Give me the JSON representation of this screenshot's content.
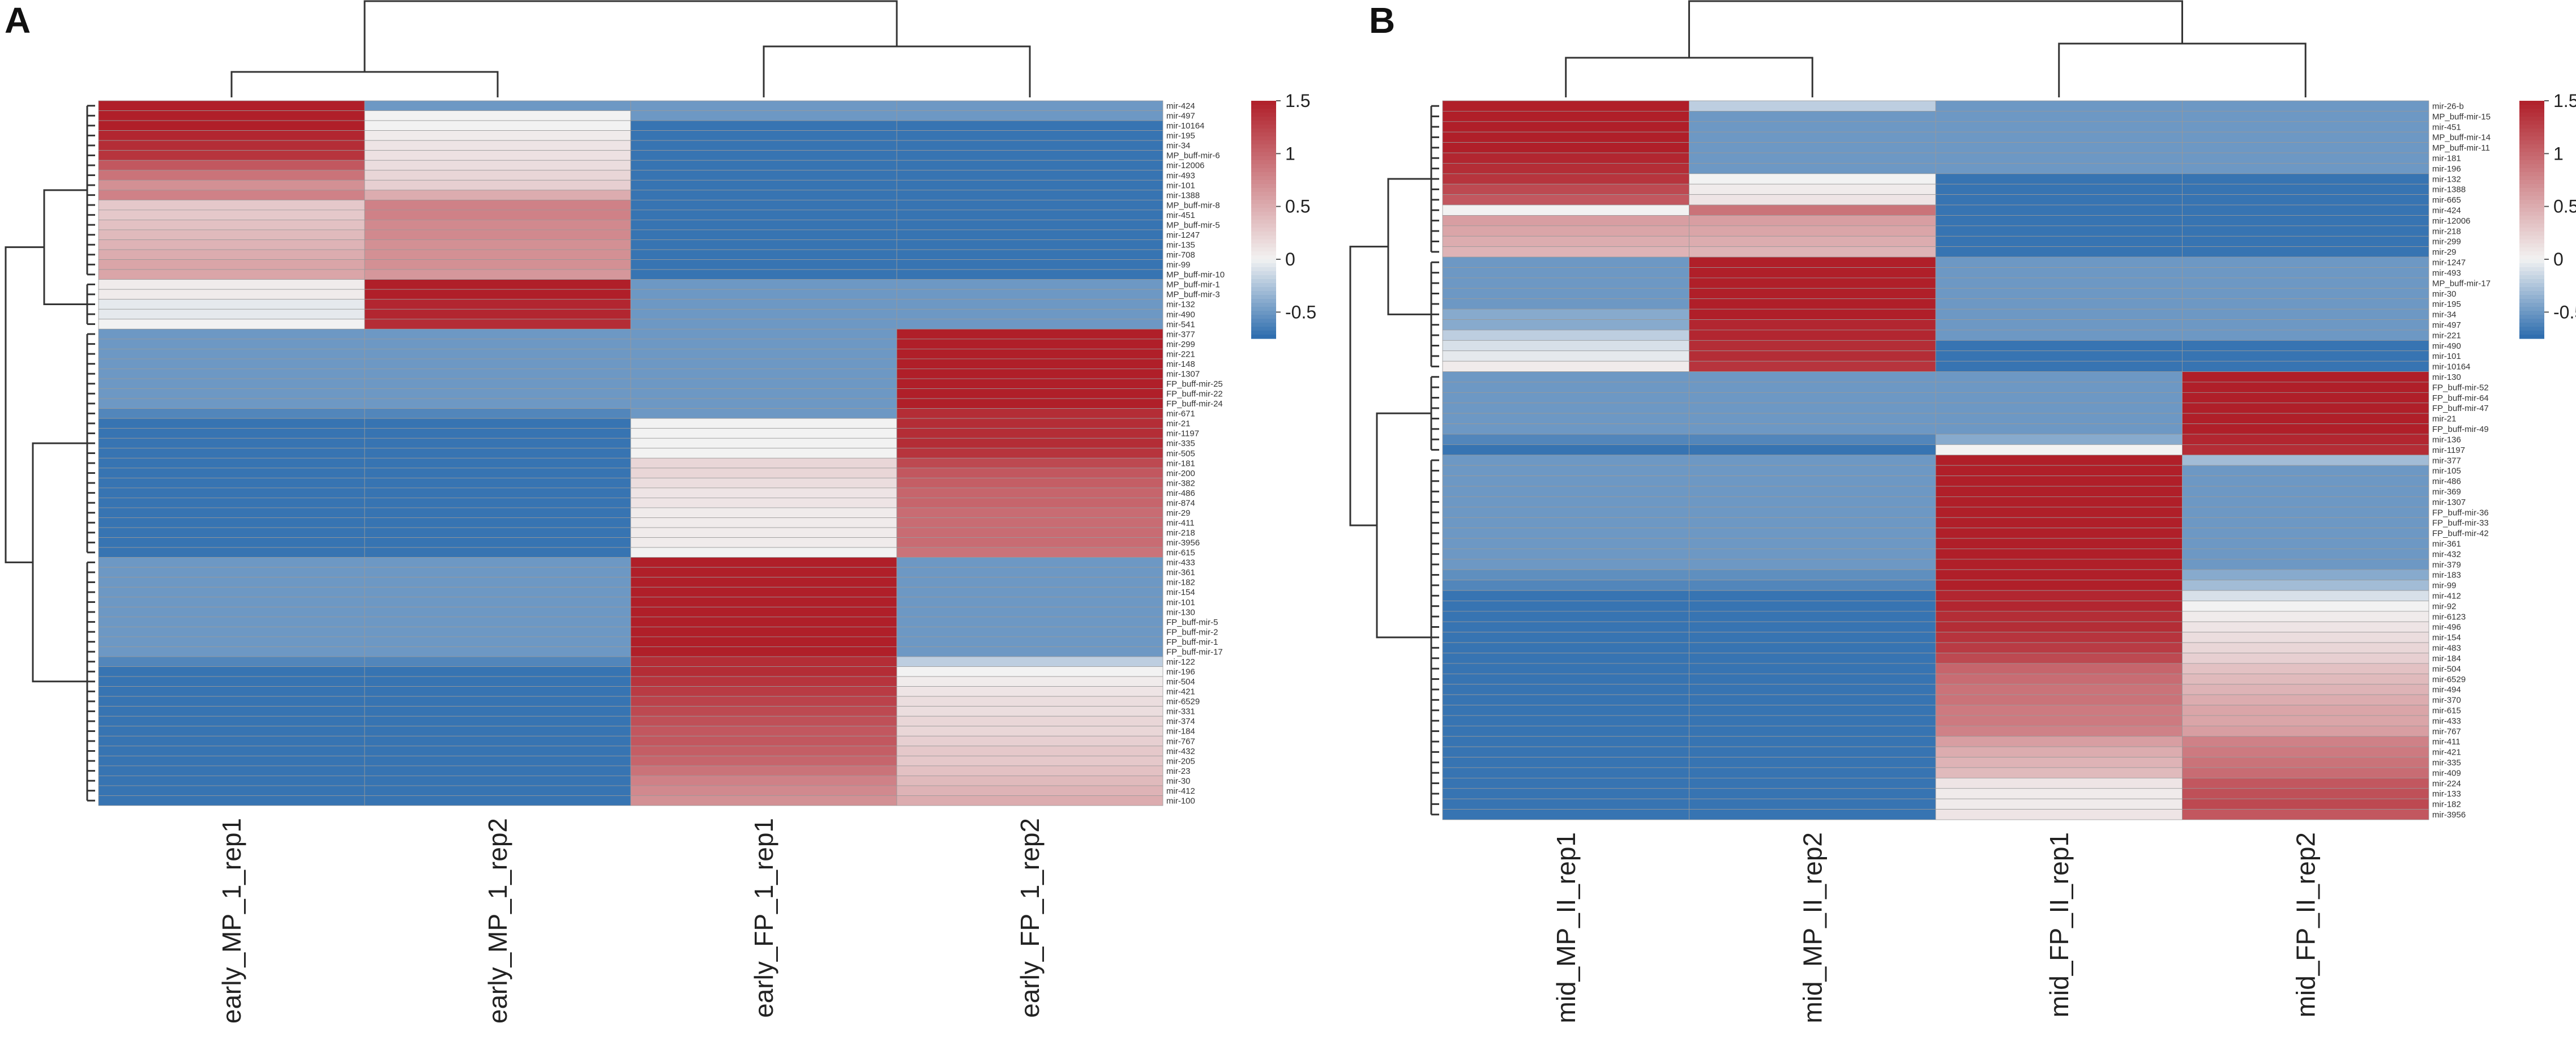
{
  "colors": {
    "low": "#2a6bad",
    "mid": "#f2f2f2",
    "high": "#b01f29",
    "grid": "#9a9a9a",
    "tree": "#333333"
  },
  "chart_data": [
    {
      "type": "heatmap",
      "panel_label": "A",
      "title": "",
      "columns": [
        "early_MP_1_rep1",
        "early_MP_1_rep2",
        "early_FP_1_rep1",
        "early_FP_1_rep2"
      ],
      "column_tree": "((early_MP_1_rep1, early_MP_1_rep2), (early_FP_1_rep1, early_FP_1_rep2))",
      "colorbar": {
        "range": [
          -0.75,
          1.5
        ],
        "ticks": [
          "1.5",
          "1",
          "0.5",
          "0",
          "-0.5"
        ],
        "tick_values": [
          1.5,
          1,
          0.5,
          0,
          -0.5
        ]
      },
      "rows": [
        "mir-424",
        "mir-497",
        "mir-10164",
        "mir-195",
        "mir-34",
        "MP_buff-mir-6",
        "mir-12006",
        "mir-493",
        "mir-101",
        "mir-1388",
        "MP_buff-mir-8",
        "mir-451",
        "MP_buff-mir-5",
        "mir-1247",
        "mir-135",
        "mir-708",
        "mir-99",
        "MP_buff-mir-10",
        "MP_buff-mir-1",
        "MP_buff-mir-3",
        "mir-132",
        "mir-490",
        "mir-541",
        "mir-377",
        "mir-299",
        "mir-221",
        "mir-148",
        "mir-1307",
        "FP_buff-mir-25",
        "FP_buff-mir-22",
        "FP_buff-mir-24",
        "mir-671",
        "mir-21",
        "mir-1197",
        "mir-335",
        "mir-505",
        "mir-181",
        "mir-200",
        "mir-382",
        "mir-486",
        "mir-874",
        "mir-29",
        "mir-411",
        "mir-218",
        "mir-3956",
        "mir-615",
        "mir-433",
        "mir-361",
        "mir-182",
        "mir-154",
        "mir-101",
        "mir-130",
        "FP_buff-mir-5",
        "FP_buff-mir-2",
        "FP_buff-mir-1",
        "FP_buff-mir-17",
        "mir-122",
        "mir-196",
        "mir-504",
        "mir-421",
        "mir-6529",
        "mir-331",
        "mir-374",
        "mir-184",
        "mir-767",
        "mir-432",
        "mir-205",
        "mir-23",
        "mir-30",
        "mir-412",
        "mir-100"
      ],
      "values": [
        [
          1.5,
          -0.5,
          -0.5,
          -0.5
        ],
        [
          1.5,
          0,
          -0.5,
          -0.5
        ],
        [
          1.5,
          0,
          -0.7,
          -0.7
        ],
        [
          1.45,
          0.05,
          -0.7,
          -0.7
        ],
        [
          1.4,
          0.1,
          -0.7,
          -0.7
        ],
        [
          1.35,
          0.12,
          -0.7,
          -0.7
        ],
        [
          1.1,
          0.15,
          -0.7,
          -0.7
        ],
        [
          0.9,
          0.2,
          -0.7,
          -0.7
        ],
        [
          0.7,
          0.25,
          -0.7,
          -0.7
        ],
        [
          0.8,
          0.5,
          -0.7,
          -0.7
        ],
        [
          0.3,
          0.8,
          -0.7,
          -0.7
        ],
        [
          0.3,
          0.8,
          -0.7,
          -0.7
        ],
        [
          0.35,
          0.75,
          -0.7,
          -0.7
        ],
        [
          0.4,
          0.75,
          -0.7,
          -0.7
        ],
        [
          0.45,
          0.7,
          -0.7,
          -0.7
        ],
        [
          0.5,
          0.7,
          -0.7,
          -0.7
        ],
        [
          0.55,
          0.7,
          -0.7,
          -0.7
        ],
        [
          0.55,
          0.65,
          -0.7,
          -0.7
        ],
        [
          0.05,
          1.5,
          -0.5,
          -0.5
        ],
        [
          0.05,
          1.5,
          -0.5,
          -0.5
        ],
        [
          -0.05,
          1.45,
          -0.5,
          -0.5
        ],
        [
          -0.05,
          1.45,
          -0.5,
          -0.5
        ],
        [
          0,
          1.4,
          -0.5,
          -0.5
        ],
        [
          -0.5,
          -0.5,
          -0.5,
          1.5
        ],
        [
          -0.5,
          -0.5,
          -0.5,
          1.5
        ],
        [
          -0.5,
          -0.5,
          -0.5,
          1.5
        ],
        [
          -0.5,
          -0.5,
          -0.5,
          1.5
        ],
        [
          -0.5,
          -0.5,
          -0.5,
          1.5
        ],
        [
          -0.5,
          -0.5,
          -0.5,
          1.5
        ],
        [
          -0.5,
          -0.5,
          -0.5,
          1.5
        ],
        [
          -0.5,
          -0.5,
          -0.5,
          1.5
        ],
        [
          -0.6,
          -0.6,
          -0.5,
          1.4
        ],
        [
          -0.7,
          -0.7,
          0,
          1.4
        ],
        [
          -0.7,
          -0.7,
          0,
          1.4
        ],
        [
          -0.7,
          -0.7,
          0,
          1.4
        ],
        [
          -0.7,
          -0.7,
          0,
          1.35
        ],
        [
          -0.7,
          -0.7,
          0.2,
          1.2
        ],
        [
          -0.7,
          -0.7,
          0.2,
          1.1
        ],
        [
          -0.7,
          -0.7,
          0.15,
          1.05
        ],
        [
          -0.7,
          -0.7,
          0.1,
          1.0
        ],
        [
          -0.7,
          -0.7,
          0.1,
          1.0
        ],
        [
          -0.7,
          -0.7,
          0.05,
          0.95
        ],
        [
          -0.7,
          -0.7,
          0.05,
          0.95
        ],
        [
          -0.7,
          -0.7,
          0.05,
          0.95
        ],
        [
          -0.7,
          -0.7,
          0.05,
          0.95
        ],
        [
          -0.7,
          -0.7,
          0,
          0.9
        ],
        [
          -0.5,
          -0.5,
          1.5,
          -0.5
        ],
        [
          -0.5,
          -0.5,
          1.5,
          -0.5
        ],
        [
          -0.5,
          -0.5,
          1.5,
          -0.5
        ],
        [
          -0.5,
          -0.5,
          1.5,
          -0.5
        ],
        [
          -0.5,
          -0.5,
          1.5,
          -0.5
        ],
        [
          -0.5,
          -0.5,
          1.5,
          -0.5
        ],
        [
          -0.5,
          -0.5,
          1.5,
          -0.5
        ],
        [
          -0.5,
          -0.5,
          1.5,
          -0.5
        ],
        [
          -0.5,
          -0.5,
          1.5,
          -0.5
        ],
        [
          -0.5,
          -0.5,
          1.5,
          -0.5
        ],
        [
          -0.6,
          -0.6,
          1.4,
          -0.2
        ],
        [
          -0.7,
          -0.7,
          1.4,
          0
        ],
        [
          -0.7,
          -0.7,
          1.35,
          0.05
        ],
        [
          -0.7,
          -0.7,
          1.3,
          0.1
        ],
        [
          -0.7,
          -0.7,
          1.25,
          0.15
        ],
        [
          -0.7,
          -0.7,
          1.2,
          0.15
        ],
        [
          -0.7,
          -0.7,
          1.15,
          0.2
        ],
        [
          -0.7,
          -0.7,
          1.1,
          0.2
        ],
        [
          -0.7,
          -0.7,
          1.1,
          0.25
        ],
        [
          -0.7,
          -0.7,
          1.05,
          0.3
        ],
        [
          -0.7,
          -0.7,
          1.0,
          0.3
        ],
        [
          -0.7,
          -0.7,
          0.9,
          0.35
        ],
        [
          -0.7,
          -0.7,
          0.8,
          0.4
        ],
        [
          -0.7,
          -0.7,
          0.75,
          0.45
        ],
        [
          -0.7,
          -0.7,
          0.7,
          0.5
        ]
      ]
    },
    {
      "type": "heatmap",
      "panel_label": "B",
      "title": "",
      "columns": [
        "mid_MP_II_rep1",
        "mid_MP_II_rep2",
        "mid_FP_II_rep1",
        "mid_FP_II_rep2"
      ],
      "column_tree": "((mid_MP_II_rep1, mid_MP_II_rep2), (mid_FP_II_rep1, mid_FP_II_rep2))",
      "colorbar": {
        "range": [
          -0.75,
          1.5
        ],
        "ticks": [
          "1.5",
          "1",
          "0.5",
          "0",
          "-0.5"
        ],
        "tick_values": [
          1.5,
          1,
          0.5,
          0,
          -0.5
        ]
      },
      "rows": [
        "mir-26-b",
        "MP_buff-mir-15",
        "mir-451",
        "MP_buff-mir-14",
        "MP_buff-mir-11",
        "mir-181",
        "mir-196",
        "mir-132",
        "mir-1388",
        "mir-665",
        "mir-424",
        "mir-12006",
        "mir-218",
        "mir-299",
        "mir-29",
        "mir-1247",
        "mir-493",
        "MP_buff-mir-17",
        "mir-30",
        "mir-195",
        "mir-34",
        "mir-497",
        "mir-221",
        "mir-490",
        "mir-101",
        "mir-10164",
        "mir-130",
        "FP_buff-mir-52",
        "FP_buff-mir-64",
        "FP_buff-mir-47",
        "mir-21",
        "FP_buff-mir-49",
        "mir-136",
        "mir-1197",
        "mir-377",
        "mir-105",
        "mir-486",
        "mir-369",
        "mir-1307",
        "FP_buff-mir-36",
        "FP_buff-mir-33",
        "FP_buff-mir-42",
        "mir-361",
        "mir-432",
        "mir-379",
        "mir-183",
        "mir-99",
        "mir-412",
        "mir-92",
        "mir-6123",
        "mir-496",
        "mir-154",
        "mir-483",
        "mir-184",
        "mir-504",
        "mir-6529",
        "mir-494",
        "mir-370",
        "mir-615",
        "mir-433",
        "mir-767",
        "mir-411",
        "mir-421",
        "mir-335",
        "mir-409",
        "mir-224",
        "mir-133",
        "mir-182",
        "mir-3956"
      ],
      "values": [
        [
          1.5,
          -0.2,
          -0.5,
          -0.5
        ],
        [
          1.5,
          -0.5,
          -0.5,
          -0.5
        ],
        [
          1.5,
          -0.5,
          -0.5,
          -0.5
        ],
        [
          1.5,
          -0.5,
          -0.5,
          -0.5
        ],
        [
          1.5,
          -0.5,
          -0.5,
          -0.5
        ],
        [
          1.45,
          -0.5,
          -0.5,
          -0.5
        ],
        [
          1.4,
          -0.5,
          -0.5,
          -0.5
        ],
        [
          1.35,
          0,
          -0.7,
          -0.7
        ],
        [
          1.2,
          0.05,
          -0.7,
          -0.7
        ],
        [
          1.1,
          0.1,
          -0.7,
          -0.7
        ],
        [
          0,
          0.9,
          -0.7,
          -0.7
        ],
        [
          0.6,
          0.6,
          -0.7,
          -0.7
        ],
        [
          0.55,
          0.55,
          -0.7,
          -0.7
        ],
        [
          0.5,
          0.5,
          -0.7,
          -0.7
        ],
        [
          0.45,
          0.45,
          -0.7,
          -0.7
        ],
        [
          -0.5,
          1.5,
          -0.5,
          -0.5
        ],
        [
          -0.5,
          1.5,
          -0.5,
          -0.5
        ],
        [
          -0.5,
          1.5,
          -0.5,
          -0.5
        ],
        [
          -0.5,
          1.5,
          -0.5,
          -0.5
        ],
        [
          -0.5,
          1.5,
          -0.5,
          -0.5
        ],
        [
          -0.4,
          1.5,
          -0.5,
          -0.5
        ],
        [
          -0.4,
          1.45,
          -0.5,
          -0.5
        ],
        [
          -0.2,
          1.45,
          -0.5,
          -0.5
        ],
        [
          -0.1,
          1.4,
          -0.7,
          -0.7
        ],
        [
          -0.05,
          1.4,
          -0.7,
          -0.7
        ],
        [
          0.05,
          1.35,
          -0.7,
          -0.7
        ],
        [
          -0.5,
          -0.5,
          -0.5,
          1.5
        ],
        [
          -0.5,
          -0.5,
          -0.5,
          1.5
        ],
        [
          -0.5,
          -0.5,
          -0.5,
          1.5
        ],
        [
          -0.5,
          -0.5,
          -0.5,
          1.5
        ],
        [
          -0.5,
          -0.5,
          -0.5,
          1.5
        ],
        [
          -0.5,
          -0.5,
          -0.5,
          1.5
        ],
        [
          -0.6,
          -0.6,
          -0.4,
          1.45
        ],
        [
          -0.7,
          -0.7,
          0,
          1.4
        ],
        [
          -0.5,
          -0.5,
          1.5,
          -0.3
        ],
        [
          -0.5,
          -0.5,
          1.5,
          -0.5
        ],
        [
          -0.5,
          -0.5,
          1.5,
          -0.5
        ],
        [
          -0.5,
          -0.5,
          1.5,
          -0.5
        ],
        [
          -0.5,
          -0.5,
          1.5,
          -0.5
        ],
        [
          -0.5,
          -0.5,
          1.5,
          -0.5
        ],
        [
          -0.5,
          -0.5,
          1.5,
          -0.5
        ],
        [
          -0.5,
          -0.5,
          1.5,
          -0.5
        ],
        [
          -0.5,
          -0.5,
          1.5,
          -0.5
        ],
        [
          -0.5,
          -0.5,
          1.5,
          -0.5
        ],
        [
          -0.5,
          -0.5,
          1.5,
          -0.5
        ],
        [
          -0.55,
          -0.55,
          1.5,
          -0.4
        ],
        [
          -0.6,
          -0.6,
          1.5,
          -0.3
        ],
        [
          -0.7,
          -0.7,
          1.45,
          -0.1
        ],
        [
          -0.7,
          -0.7,
          1.45,
          0
        ],
        [
          -0.7,
          -0.7,
          1.4,
          0.05
        ],
        [
          -0.7,
          -0.7,
          1.4,
          0.1
        ],
        [
          -0.7,
          -0.7,
          1.35,
          0.15
        ],
        [
          -0.7,
          -0.7,
          1.3,
          0.2
        ],
        [
          -0.7,
          -0.7,
          1.2,
          0.25
        ],
        [
          -0.7,
          -0.7,
          1.0,
          0.35
        ],
        [
          -0.7,
          -0.7,
          0.95,
          0.4
        ],
        [
          -0.7,
          -0.7,
          0.9,
          0.45
        ],
        [
          -0.7,
          -0.7,
          0.9,
          0.5
        ],
        [
          -0.7,
          -0.7,
          0.85,
          0.55
        ],
        [
          -0.7,
          -0.7,
          0.85,
          0.55
        ],
        [
          -0.7,
          -0.7,
          0.8,
          0.6
        ],
        [
          -0.7,
          -0.7,
          0.6,
          0.8
        ],
        [
          -0.7,
          -0.7,
          0.5,
          0.85
        ],
        [
          -0.7,
          -0.7,
          0.45,
          0.9
        ],
        [
          -0.7,
          -0.7,
          0.4,
          0.95
        ],
        [
          -0.7,
          -0.7,
          0.1,
          1.1
        ],
        [
          -0.7,
          -0.7,
          0.05,
          1.15
        ],
        [
          -0.7,
          -0.7,
          0.05,
          1.2
        ],
        [
          -0.7,
          -0.7,
          0.1,
          1.1
        ]
      ]
    }
  ]
}
